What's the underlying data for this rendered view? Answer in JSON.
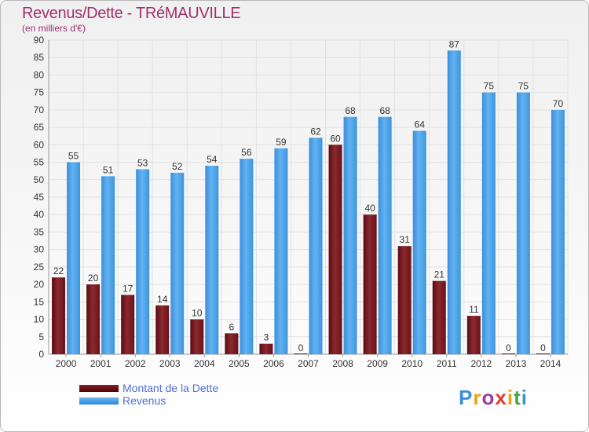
{
  "title": "Revenus/Dette - TRéMAUVILLE",
  "subtitle": "(en milliers d'€)",
  "logo": {
    "letters": [
      "P",
      "r",
      "o",
      "x",
      "i",
      "t",
      "i"
    ],
    "colors": [
      "#3c8fd8",
      "#e8a21a",
      "#9b3ea0",
      "#e03a2f",
      "#e8a21a",
      "#4aa43b",
      "#3c8fd8"
    ]
  },
  "colors": {
    "dette": "#7a1a22",
    "revenus": "#4a9fe6",
    "title": "#a0306e",
    "legend_text": "#4f6fd8"
  },
  "legend": [
    {
      "label": "Montant de la Dette",
      "color": "#6a0f14"
    },
    {
      "label": "Revenus",
      "color": "#3d9be8"
    }
  ],
  "chart_data": {
    "type": "bar",
    "title": "Revenus/Dette - TRéMAUVILLE",
    "ylabel": "(en milliers d'€)",
    "categories": [
      "2000",
      "2001",
      "2002",
      "2003",
      "2004",
      "2005",
      "2006",
      "2007",
      "2008",
      "2009",
      "2010",
      "2011",
      "2012",
      "2013",
      "2014"
    ],
    "series": [
      {
        "name": "Montant de la Dette",
        "values": [
          22,
          20,
          17,
          14,
          10,
          6,
          3,
          0,
          60,
          40,
          31,
          21,
          11,
          0,
          0
        ]
      },
      {
        "name": "Revenus",
        "values": [
          55,
          51,
          53,
          52,
          54,
          56,
          59,
          62,
          68,
          68,
          64,
          87,
          75,
          75,
          70
        ]
      }
    ],
    "ylim": [
      0,
      90
    ],
    "yticks": [
      0,
      5,
      10,
      15,
      20,
      25,
      30,
      35,
      40,
      45,
      50,
      55,
      60,
      65,
      70,
      75,
      80,
      85,
      90
    ],
    "grid": true,
    "legend_position": "bottom-left"
  }
}
